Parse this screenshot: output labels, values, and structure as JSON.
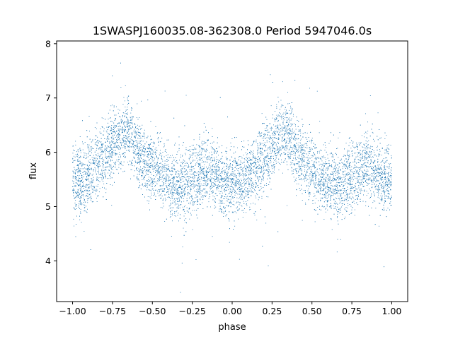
{
  "chart_data": {
    "type": "scatter",
    "title": "1SWASPJ160035.08-362308.0 Period 5947046.0s",
    "xlabel": "phase",
    "ylabel": "flux",
    "xlim": [
      -1.1,
      1.1
    ],
    "ylim": [
      3.25,
      8.05
    ],
    "xticks": [
      -1.0,
      -0.75,
      -0.5,
      -0.25,
      0.0,
      0.25,
      0.5,
      0.75,
      1.0
    ],
    "xtick_labels": [
      "−1.00",
      "−0.75",
      "−0.50",
      "−0.25",
      "0.00",
      "0.25",
      "0.50",
      "0.75",
      "1.00"
    ],
    "yticks": [
      4,
      5,
      6,
      7,
      8
    ],
    "ytick_labels": [
      "4",
      "5",
      "6",
      "7",
      "8"
    ],
    "grid": false,
    "point_color": "#1f77b4",
    "series": [
      {
        "x": [
          -1.0,
          -0.95,
          -0.9,
          -0.85,
          -0.8,
          -0.75,
          -0.7,
          -0.65,
          -0.6,
          -0.55,
          -0.5,
          -0.45,
          -0.4,
          -0.35,
          -0.3,
          -0.25,
          -0.2,
          -0.15,
          -0.1,
          -0.05,
          0.0,
          0.05,
          0.1,
          0.15,
          0.2,
          0.25,
          0.3,
          0.35,
          0.4,
          0.45,
          0.5,
          0.55,
          0.6,
          0.65,
          0.7,
          0.75,
          0.8,
          0.85,
          0.9,
          0.95,
          1.0
        ],
        "y": [
          5.5,
          5.45,
          5.6,
          5.75,
          5.9,
          6.15,
          6.3,
          6.4,
          6.1,
          5.85,
          5.75,
          5.6,
          5.45,
          5.4,
          5.45,
          5.55,
          5.6,
          5.7,
          5.6,
          5.45,
          5.4,
          5.45,
          5.55,
          5.7,
          5.9,
          6.1,
          6.3,
          6.4,
          6.0,
          5.8,
          5.7,
          5.55,
          5.45,
          5.4,
          5.45,
          5.6,
          5.7,
          5.75,
          5.65,
          5.5,
          5.5
        ]
      }
    ]
  }
}
